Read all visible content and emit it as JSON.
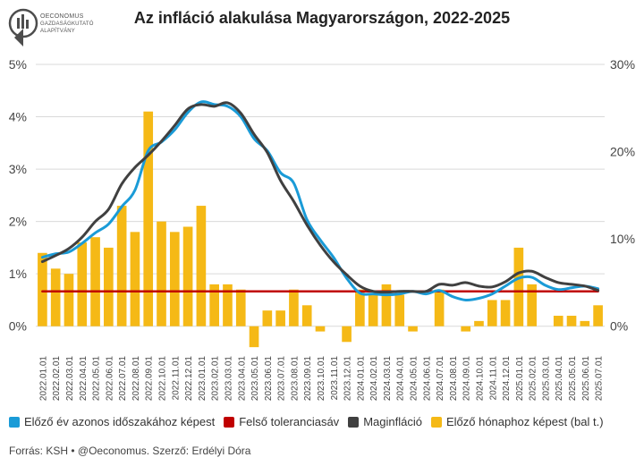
{
  "logo": {
    "lines": [
      "OECONOMUS",
      "GAZDASÁGKUTATÓ",
      "ALAPÍTVÁNY"
    ]
  },
  "footer": {
    "source": "Forrás: KSH • @Oeconomus. Szerző: Erdélyi Dóra"
  },
  "chart_data": {
    "type": "bar+line",
    "title": "Az infláció alakulása Magyarországon, 2022-2025",
    "left_axis": {
      "ticks": [
        "0%",
        "1%",
        "2%",
        "3%",
        "4%",
        "5%"
      ],
      "min": -0.5,
      "max": 5
    },
    "right_axis": {
      "ticks": [
        "0%",
        "10%",
        "20%",
        "30%"
      ],
      "min": -3,
      "max": 30
    },
    "x": [
      "2022.01.01",
      "2022.02.01",
      "2022.03.01",
      "2022.04.01",
      "2022.05.01",
      "2022.06.01",
      "2022.07.01",
      "2022.08.01",
      "2022.09.01",
      "2022.10.01",
      "2022.11.01",
      "2022.12.01",
      "2023.01.01",
      "2023.02.01",
      "2023.03.01",
      "2023.04.01",
      "2023.05.01",
      "2023.06.01",
      "2023.07.01",
      "2023.08.01",
      "2023.09.01",
      "2023.10.01",
      "2023.11.01",
      "2023.12.01",
      "2024.01.01",
      "2024.02.01",
      "2024.03.01",
      "2024.04.01",
      "2024.05.01",
      "2024.06.01",
      "2024.07.01",
      "2024.08.01",
      "2024.09.01",
      "2024.10.01",
      "2024.11.01",
      "2024.12.01",
      "2025.01.01",
      "2025.02.01",
      "2025.03.01",
      "2025.04.01",
      "2025.05.01",
      "2025.06.01",
      "2025.07.01"
    ],
    "x_labels": [
      "2022.01.01",
      "2022.02.01",
      "2022.03.01",
      "2022.04.01",
      "2022.05.01",
      "2022.06.01",
      "2022.07.01",
      "2022.08.01",
      "2022.09.01",
      "2022.10.01",
      "2022.11.01",
      "2022.12.01",
      "2023.01.01",
      "2023.02.01",
      "2023.03.01",
      "2023.04.01",
      "2023.05.01",
      "2023.06.01",
      "2023.07.01",
      "2023.08.01",
      "2023.09.01",
      "2023.10.01",
      "2023.11.01",
      "2023.12.01",
      "2024.01.01",
      "2024.02.01",
      "2024.03.01",
      "2024.04.01",
      "2024.05.01",
      "2024.06.01",
      "2024.07.01",
      "2024.08.01",
      "2024.09.01",
      "2024.10.01",
      "2024.11.01",
      "2024.12.01",
      "2025.01.01",
      "2025.02.01",
      "2025.03.01",
      "2025.04.01",
      "2025.05.01",
      "2025.06.01",
      "2025.07.01"
    ],
    "series": [
      {
        "name": "Előző év azonos időszakához képest",
        "kind": "line",
        "axis": "right",
        "color": "#1a9bd7",
        "values": [
          7.9,
          8.3,
          8.5,
          9.5,
          10.7,
          11.7,
          13.7,
          15.6,
          20.1,
          21.1,
          22.5,
          24.5,
          25.7,
          25.4,
          25.2,
          24.0,
          21.5,
          20.1,
          17.6,
          16.4,
          12.2,
          9.9,
          7.9,
          5.5,
          3.8,
          3.7,
          3.6,
          3.7,
          4.0,
          3.7,
          4.1,
          3.4,
          3.0,
          3.2,
          3.7,
          4.6,
          5.5,
          5.6,
          4.7,
          4.2,
          4.4,
          4.6,
          4.3
        ]
      },
      {
        "name": "Felső toleranciasáv",
        "kind": "line",
        "axis": "right",
        "color": "#c00000",
        "values": [
          4,
          4,
          4,
          4,
          4,
          4,
          4,
          4,
          4,
          4,
          4,
          4,
          4,
          4,
          4,
          4,
          4,
          4,
          4,
          4,
          4,
          4,
          4,
          4,
          4,
          4,
          4,
          4,
          4,
          4,
          4,
          4,
          4,
          4,
          4,
          4,
          4,
          4,
          4,
          4,
          4,
          4,
          4
        ]
      },
      {
        "name": "Maginfláció",
        "kind": "line",
        "axis": "right",
        "color": "#404040",
        "values": [
          7.4,
          8.1,
          8.9,
          10.2,
          12.0,
          13.4,
          16.3,
          18.2,
          19.6,
          21.2,
          23.0,
          24.9,
          25.4,
          25.2,
          25.6,
          24.4,
          22.0,
          19.9,
          16.7,
          14.3,
          11.6,
          9.3,
          7.4,
          5.9,
          4.6,
          4.0,
          3.9,
          4.0,
          4.0,
          4.0,
          4.8,
          4.7,
          5.0,
          4.6,
          4.5,
          5.1,
          6.1,
          6.3,
          5.6,
          5.0,
          4.8,
          4.6,
          4.1
        ]
      },
      {
        "name": "Előző hónaphoz képest (bal t.)",
        "kind": "bar",
        "axis": "left",
        "color": "#f5b916",
        "values": [
          1.4,
          1.1,
          1.0,
          1.6,
          1.7,
          1.5,
          2.3,
          1.8,
          4.1,
          2.0,
          1.8,
          1.9,
          2.3,
          0.8,
          0.8,
          0.7,
          -0.4,
          0.3,
          0.3,
          0.7,
          0.4,
          -0.1,
          0.0,
          -0.3,
          0.7,
          0.6,
          0.8,
          0.6,
          -0.1,
          0.0,
          0.7,
          0.0,
          -0.1,
          0.1,
          0.5,
          0.5,
          1.5,
          0.8,
          0.0,
          0.2,
          0.2,
          0.1,
          0.4
        ]
      }
    ]
  }
}
